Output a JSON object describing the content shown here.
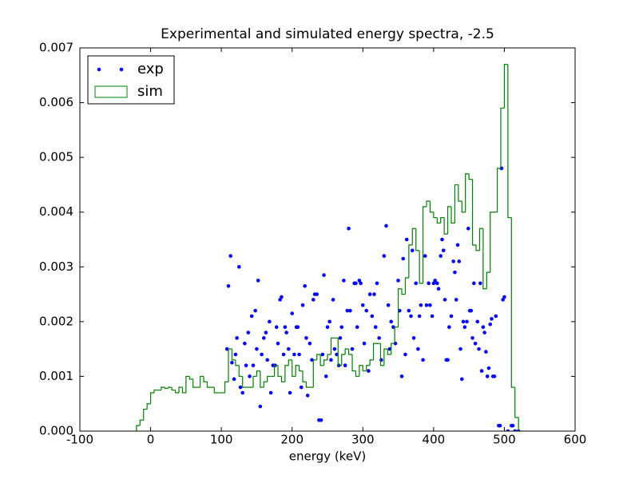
{
  "chart_data": {
    "type": "combo",
    "title": "Experimental and simulated energy spectra, -2.5",
    "x_label": "energy (keV)",
    "xlim": [
      -100,
      600
    ],
    "xticks": [
      -100,
      0,
      100,
      200,
      300,
      400,
      500,
      600
    ],
    "ylim": [
      0,
      0.007
    ],
    "yticks": [
      {
        "value": 0,
        "label": "0.000"
      },
      0.001,
      0.002,
      0.003,
      0.004,
      0.005,
      0.006,
      0.007
    ],
    "legend": "upper left",
    "series": [
      {
        "name": "exp",
        "type": "scatter",
        "color": "#0000ff",
        "x": [
          108,
          110,
          113,
          115,
          118,
          120,
          122,
          125,
          127,
          130,
          133,
          135,
          138,
          140,
          143,
          145,
          148,
          150,
          152,
          155,
          157,
          160,
          163,
          165,
          168,
          170,
          173,
          176,
          178,
          180,
          183,
          185,
          188,
          190,
          192,
          195,
          197,
          200,
          203,
          206,
          208,
          210,
          213,
          215,
          218,
          220,
          222,
          225,
          228,
          230,
          232,
          235,
          238,
          241,
          243,
          245,
          248,
          250,
          253,
          255,
          258,
          260,
          263,
          266,
          268,
          270,
          273,
          275,
          278,
          280,
          282,
          285,
          288,
          290,
          292,
          295,
          297,
          300,
          302,
          305,
          308,
          310,
          313,
          316,
          318,
          320,
          323,
          326,
          330,
          333,
          336,
          338,
          340,
          343,
          346,
          350,
          352,
          355,
          357,
          360,
          362,
          365,
          368,
          370,
          372,
          375,
          378,
          380,
          382,
          385,
          388,
          390,
          393,
          395,
          398,
          400,
          402,
          405,
          407,
          410,
          412,
          414,
          416,
          418,
          420,
          422,
          425,
          428,
          430,
          432,
          434,
          436,
          438,
          440,
          442,
          444,
          447,
          449,
          451,
          453,
          455,
          457,
          459,
          462,
          464,
          466,
          468,
          470,
          472,
          474,
          476,
          478,
          480,
          482,
          484,
          486,
          488,
          492,
          494,
          496,
          498,
          500,
          505,
          510,
          512,
          515,
          520
        ],
        "values": [
          0.0015,
          0.00265,
          0.0032,
          0.00125,
          0.00095,
          0.0014,
          0.0017,
          0.003,
          0.0008,
          0.0007,
          0.0016,
          0.0012,
          0.0018,
          0.001,
          0.0021,
          0.0012,
          0.0022,
          0.0015,
          0.00275,
          0.00045,
          0.0014,
          0.0017,
          0.0018,
          0.0013,
          0.002,
          0.0007,
          0.0012,
          0.0012,
          0.0019,
          0.0016,
          0.0024,
          0.00245,
          0.0014,
          0.0019,
          0.0018,
          0.0015,
          0.0007,
          0.00215,
          0.0014,
          0.0019,
          0.0019,
          0.0014,
          0.0008,
          0.0023,
          0.00265,
          0.0017,
          0.00065,
          0.0016,
          0.0013,
          0.0024,
          0.0025,
          0.0025,
          0.0002,
          0.0002,
          0.0014,
          0.00285,
          0.001,
          0.0019,
          0.002,
          0.0013,
          0.0024,
          0.0015,
          0.0014,
          0.0012,
          0.0017,
          0.0019,
          0.00275,
          0.0012,
          0.0022,
          0.0037,
          0.0022,
          0.0015,
          0.0027,
          0.0027,
          0.0019,
          0.00275,
          0.0027,
          0.0023,
          0.0016,
          0.0022,
          0.0011,
          0.0025,
          0.0021,
          0.0025,
          0.0019,
          0.0027,
          0.0017,
          0.0013,
          0.0032,
          0.00375,
          0.0023,
          0.0015,
          0.002,
          0.0019,
          0.0016,
          0.00275,
          0.0022,
          0.001,
          0.00315,
          0.0014,
          0.0035,
          0.0022,
          0.0021,
          0.0033,
          0.0017,
          0.0027,
          0.0015,
          0.0021,
          0.0023,
          0.0013,
          0.0032,
          0.0023,
          0.0027,
          0.0023,
          0.0021,
          0.0027,
          0.00275,
          0.0027,
          0.0026,
          0.0032,
          0.0035,
          0.0033,
          0.0024,
          0.0013,
          0.0013,
          0.0019,
          0.0021,
          0.0031,
          0.0029,
          0.0024,
          0.0034,
          0.0031,
          0.0015,
          0.00095,
          0.002,
          0.0019,
          0.002,
          0.0037,
          0.0022,
          0.0022,
          0.0017,
          0.0027,
          0.0016,
          0.002,
          0.0015,
          0.0027,
          0.0011,
          0.0019,
          0.0018,
          0.00145,
          0.001,
          0.00115,
          0.00195,
          0.00205,
          0.001,
          0.001,
          0.0021,
          0.0001,
          0.0001,
          0.0048,
          0.0024,
          0.00245,
          0,
          0.0001,
          0.0001,
          0,
          0
        ]
      },
      {
        "name": "sim",
        "type": "step",
        "color": "#008000",
        "bins": [
          -20,
          -15,
          -10,
          -5,
          0,
          5,
          10,
          15,
          20,
          25,
          30,
          35,
          40,
          45,
          50,
          55,
          60,
          65,
          70,
          75,
          80,
          85,
          90,
          95,
          100,
          105,
          110,
          115,
          120,
          125,
          130,
          135,
          140,
          145,
          150,
          155,
          160,
          165,
          170,
          175,
          180,
          185,
          190,
          195,
          200,
          205,
          210,
          215,
          220,
          225,
          230,
          235,
          240,
          245,
          250,
          255,
          260,
          265,
          270,
          275,
          280,
          285,
          290,
          295,
          300,
          305,
          310,
          315,
          320,
          325,
          330,
          335,
          340,
          345,
          350,
          355,
          360,
          365,
          370,
          375,
          380,
          385,
          390,
          395,
          400,
          405,
          410,
          415,
          420,
          425,
          430,
          435,
          440,
          445,
          450,
          455,
          460,
          465,
          470,
          475,
          480,
          485,
          490,
          495,
          500,
          505,
          510,
          515,
          520,
          525
        ],
        "values": [
          0.0001,
          0.0002,
          0.0004,
          0.0005,
          0.0007,
          0.00075,
          0.00075,
          0.0008,
          0.00078,
          0.0008,
          0.00075,
          0.0007,
          0.0008,
          0.0007,
          0.001,
          0.00095,
          0.0008,
          0.0008,
          0.001,
          0.0009,
          0.0008,
          0.0008,
          0.0007,
          0.0007,
          0.0007,
          0.0009,
          0.0015,
          0.0013,
          0.0012,
          0.001,
          0.0008,
          0.0008,
          0.0008,
          0.001,
          0.0011,
          0.0008,
          0.0009,
          0.001,
          0.001,
          0.0012,
          0.001,
          0.0009,
          0.0012,
          0.0013,
          0.001,
          0.0012,
          0.0011,
          0.0009,
          0.0008,
          0.0008,
          0.0013,
          0.0014,
          0.0012,
          0.0013,
          0.0014,
          0.0017,
          0.0017,
          0.0012,
          0.0014,
          0.0015,
          0.0014,
          0.0011,
          0.001,
          0.0012,
          0.0011,
          0.0012,
          0.0013,
          0.0016,
          0.0016,
          0.0012,
          0.0015,
          0.0014,
          0.0016,
          0.0019,
          0.0026,
          0.0025,
          0.0028,
          0.0034,
          0.0037,
          0.0033,
          0.0027,
          0.0041,
          0.0042,
          0.004,
          0.0039,
          0.0038,
          0.0039,
          0.0036,
          0.0041,
          0.0038,
          0.0045,
          0.0042,
          0.004,
          0.0047,
          0.0046,
          0.0034,
          0.0033,
          0.0037,
          0.0026,
          0.0029,
          0.004,
          0.004,
          0.0048,
          0.0059,
          0.0067,
          0.0039,
          0.0008,
          0.00025,
          0
        ]
      }
    ]
  }
}
